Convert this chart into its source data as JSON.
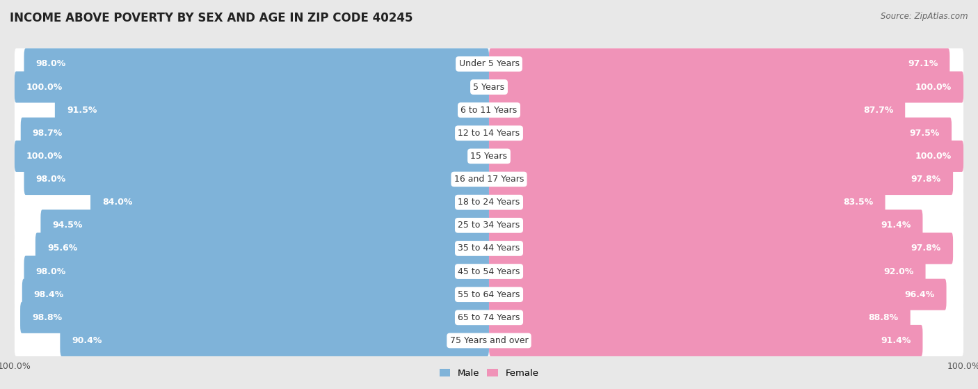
{
  "title": "INCOME ABOVE POVERTY BY SEX AND AGE IN ZIP CODE 40245",
  "source": "Source: ZipAtlas.com",
  "categories": [
    "Under 5 Years",
    "5 Years",
    "6 to 11 Years",
    "12 to 14 Years",
    "15 Years",
    "16 and 17 Years",
    "18 to 24 Years",
    "25 to 34 Years",
    "35 to 44 Years",
    "45 to 54 Years",
    "55 to 64 Years",
    "65 to 74 Years",
    "75 Years and over"
  ],
  "male_values": [
    98.0,
    100.0,
    91.5,
    98.7,
    100.0,
    98.0,
    84.0,
    94.5,
    95.6,
    98.0,
    98.4,
    98.8,
    90.4
  ],
  "female_values": [
    97.1,
    100.0,
    87.7,
    97.5,
    100.0,
    97.8,
    83.5,
    91.4,
    97.8,
    92.0,
    96.4,
    88.8,
    91.4
  ],
  "male_color": "#7fb3d9",
  "female_color": "#f093b8",
  "bar_height": 0.68,
  "background_color": "#e8e8e8",
  "bar_bg_color": "#ffffff",
  "row_bg_color": "#f0f0f0",
  "title_fontsize": 12,
  "label_fontsize": 9,
  "tick_fontsize": 9,
  "source_fontsize": 8.5
}
